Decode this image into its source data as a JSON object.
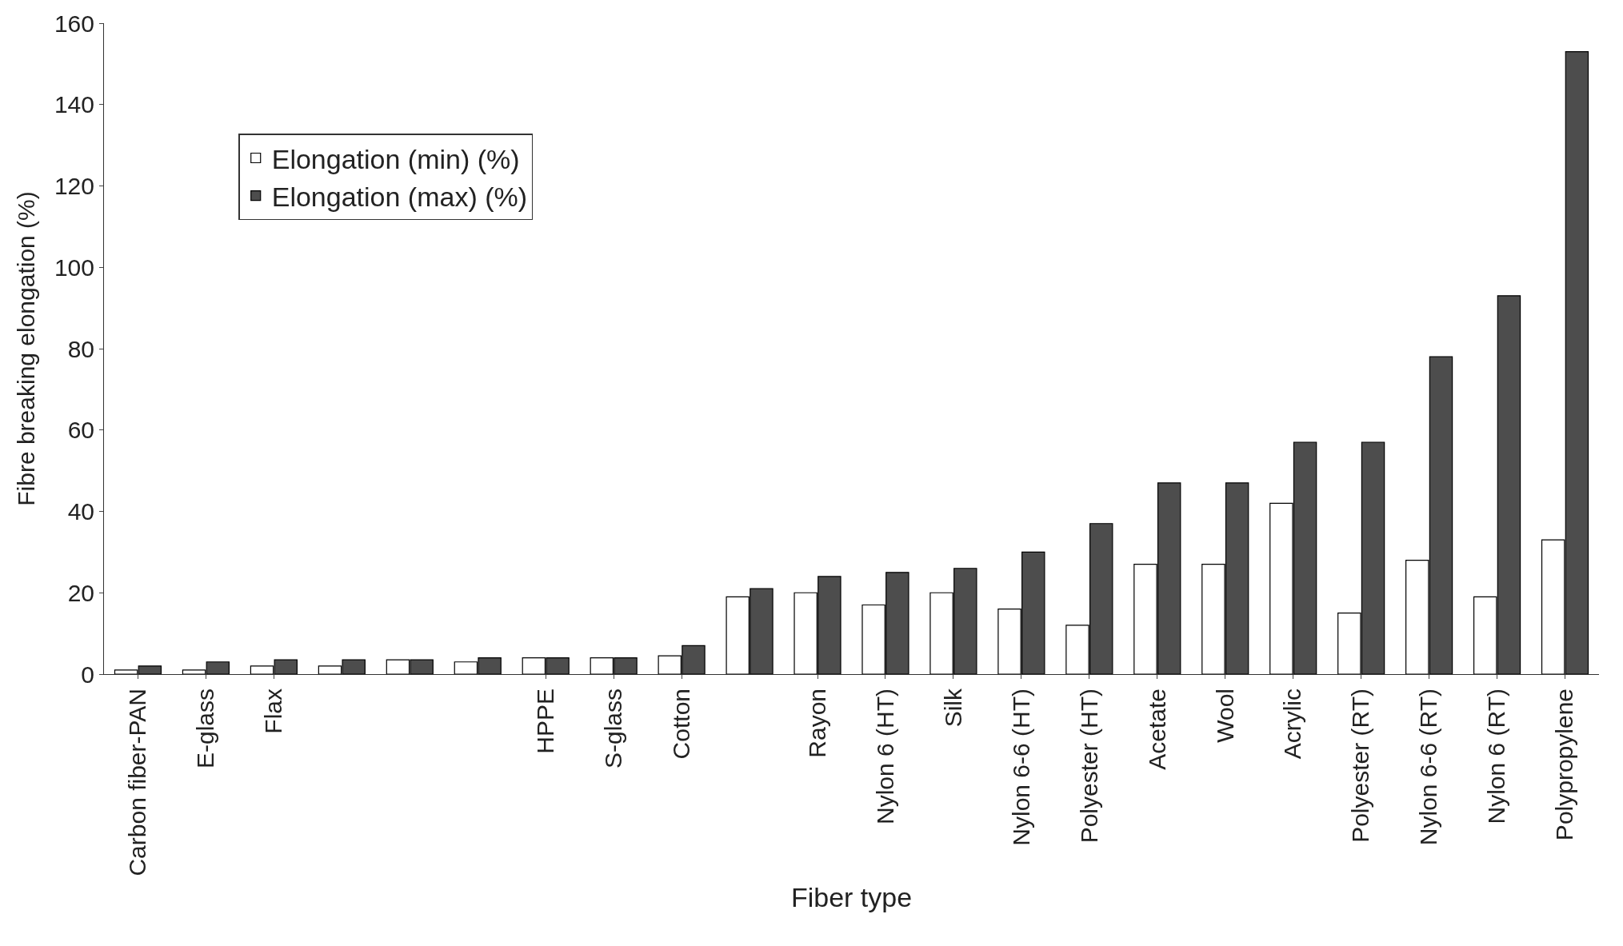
{
  "chart_data": {
    "type": "bar",
    "xlabel": "Fiber type",
    "ylabel": "Fibre breaking elongation (%)",
    "categories": [
      "Carbon fiber-PAN",
      "E-glass",
      "Flax",
      null,
      null,
      null,
      "HPPE",
      "S-glass",
      "Cotton",
      null,
      "Rayon",
      "Nylon 6 (HT)",
      "Silk",
      "Nylon 6-6 (HT)",
      "Polyester (HT)",
      "Acetate",
      "Wool",
      "Acrylic",
      "Polyester (RT)",
      "Nylon 6-6 (RT)",
      "Nylon 6 (RT)",
      "Polypropylene"
    ],
    "series": [
      {
        "name": "Elongation (min) (%)",
        "color": "#ffffff",
        "values": [
          1,
          1,
          2,
          2,
          3.5,
          3,
          4,
          4,
          4.5,
          19,
          20,
          17,
          20,
          16,
          12,
          27,
          27,
          42,
          15,
          28,
          19,
          33
        ]
      },
      {
        "name": "Elongation (max) (%)",
        "color": "#4d4d4d",
        "values": [
          2,
          3,
          3.5,
          3.5,
          3.5,
          4,
          4,
          4,
          7,
          21,
          24,
          25,
          26,
          30,
          37,
          47,
          47,
          57,
          57,
          78,
          93,
          153
        ]
      }
    ],
    "ylim": [
      0,
      160
    ],
    "yticks": [
      0,
      20,
      40,
      60,
      80,
      100,
      120,
      140,
      160
    ],
    "legend": "top left"
  }
}
